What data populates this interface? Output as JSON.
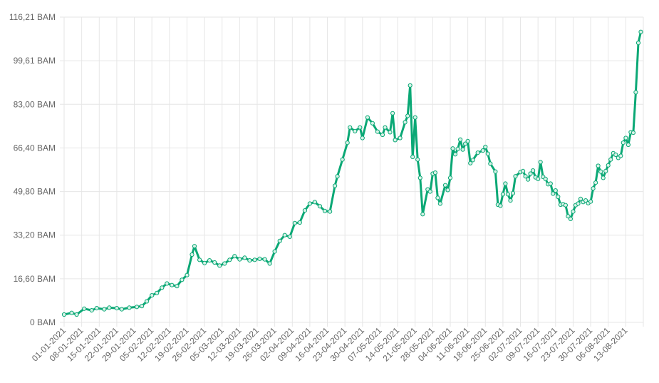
{
  "chart_data": {
    "type": "line",
    "title": "",
    "xlabel": "",
    "ylabel": "",
    "grid": true,
    "legend": "none",
    "ylim": [
      0,
      116.21
    ],
    "y_ticks": [
      "0 BAM",
      "16,60 BAM",
      "33,20 BAM",
      "49,80 BAM",
      "66,40 BAM",
      "83,00 BAM",
      "99,61 BAM",
      "116,21 BAM"
    ],
    "x_tick_labels": [
      "01-01-2021",
      "08-01-2021",
      "15-01-2021",
      "22-01-2021",
      "29-01-2021",
      "05-02-2021",
      "12-02-2021",
      "19-02-2021",
      "26-02-2021",
      "05-03-2021",
      "12-03-2021",
      "19-03-2021",
      "26-03-2021",
      "02-04-2021",
      "09-04-2021",
      "16-04-2021",
      "23-04-2021",
      "30-04-2021",
      "07-05-2021",
      "14-05-2021",
      "21-05-2021",
      "28-05-2021",
      "04-06-2021",
      "11-06-2021",
      "18-06-2021",
      "25-06-2021",
      "02-07-2021",
      "09-07-2021",
      "16-07-2021",
      "23-07-2021",
      "30-07-2021",
      "06-08-2021",
      "13-08-2021"
    ],
    "series": [
      {
        "color": "#0aa875",
        "points": [
          [
            "01-01-2021",
            3.0
          ],
          [
            "04-01-2021",
            3.6
          ],
          [
            "06-01-2021",
            3.0
          ],
          [
            "09-01-2021",
            5.2
          ],
          [
            "12-01-2021",
            4.6
          ],
          [
            "14-01-2021",
            5.4
          ],
          [
            "17-01-2021",
            5.0
          ],
          [
            "19-01-2021",
            5.6
          ],
          [
            "22-01-2021",
            5.4
          ],
          [
            "24-01-2021",
            5.0
          ],
          [
            "27-01-2021",
            5.6
          ],
          [
            "30-01-2021",
            5.9
          ],
          [
            "01-02-2021",
            6.2
          ],
          [
            "03-02-2021",
            8.0
          ],
          [
            "05-02-2021",
            10.3
          ],
          [
            "07-02-2021",
            11.2
          ],
          [
            "09-02-2021",
            13.2
          ],
          [
            "11-02-2021",
            14.8
          ],
          [
            "13-02-2021",
            14.2
          ],
          [
            "15-02-2021",
            13.8
          ],
          [
            "17-02-2021",
            16.2
          ],
          [
            "19-02-2021",
            18.0
          ],
          [
            "21-02-2021",
            25.8
          ],
          [
            "22-02-2021",
            29.0
          ],
          [
            "24-02-2021",
            23.8
          ],
          [
            "26-02-2021",
            22.6
          ],
          [
            "28-02-2021",
            23.6
          ],
          [
            "02-03-2021",
            22.8
          ],
          [
            "04-03-2021",
            21.6
          ],
          [
            "06-03-2021",
            22.4
          ],
          [
            "08-03-2021",
            23.8
          ],
          [
            "10-03-2021",
            25.2
          ],
          [
            "12-03-2021",
            24.0
          ],
          [
            "14-03-2021",
            24.6
          ],
          [
            "16-03-2021",
            23.6
          ],
          [
            "18-03-2021",
            23.8
          ],
          [
            "20-03-2021",
            24.2
          ],
          [
            "22-03-2021",
            24.0
          ],
          [
            "24-03-2021",
            22.4
          ],
          [
            "26-03-2021",
            27.0
          ],
          [
            "28-03-2021",
            31.0
          ],
          [
            "30-03-2021",
            33.2
          ],
          [
            "01-04-2021",
            32.6
          ],
          [
            "03-04-2021",
            37.8
          ],
          [
            "05-04-2021",
            38.0
          ],
          [
            "07-04-2021",
            42.6
          ],
          [
            "09-04-2021",
            45.2
          ],
          [
            "11-04-2021",
            45.8
          ],
          [
            "13-04-2021",
            44.2
          ],
          [
            "15-04-2021",
            42.4
          ],
          [
            "17-04-2021",
            42.2
          ],
          [
            "19-04-2021",
            52.0
          ],
          [
            "20-04-2021",
            55.6
          ],
          [
            "22-04-2021",
            62.0
          ],
          [
            "24-04-2021",
            68.4
          ],
          [
            "25-04-2021",
            74.2
          ],
          [
            "27-04-2021",
            72.8
          ],
          [
            "29-04-2021",
            74.2
          ],
          [
            "30-04-2021",
            70.2
          ],
          [
            "02-05-2021",
            78.0
          ],
          [
            "04-05-2021",
            75.8
          ],
          [
            "06-05-2021",
            72.6
          ],
          [
            "08-05-2021",
            71.4
          ],
          [
            "09-05-2021",
            74.2
          ],
          [
            "11-05-2021",
            72.4
          ],
          [
            "12-05-2021",
            79.6
          ],
          [
            "13-05-2021",
            69.4
          ],
          [
            "15-05-2021",
            70.2
          ],
          [
            "17-05-2021",
            76.2
          ],
          [
            "18-05-2021",
            78.6
          ],
          [
            "19-05-2021",
            90.2
          ],
          [
            "20-05-2021",
            63.0
          ],
          [
            "21-05-2021",
            78.0
          ],
          [
            "22-05-2021",
            62.0
          ],
          [
            "23-05-2021",
            55.0
          ],
          [
            "24-05-2021",
            41.2
          ],
          [
            "26-05-2021",
            50.6
          ],
          [
            "27-05-2021",
            49.8
          ],
          [
            "28-05-2021",
            56.6
          ],
          [
            "29-05-2021",
            57.0
          ],
          [
            "30-05-2021",
            47.4
          ],
          [
            "31-05-2021",
            45.2
          ],
          [
            "02-06-2021",
            52.2
          ],
          [
            "03-06-2021",
            50.4
          ],
          [
            "04-06-2021",
            55.0
          ],
          [
            "05-06-2021",
            66.2
          ],
          [
            "06-06-2021",
            64.0
          ],
          [
            "07-06-2021",
            66.0
          ],
          [
            "08-06-2021",
            69.6
          ],
          [
            "09-06-2021",
            65.8
          ],
          [
            "10-06-2021",
            68.0
          ],
          [
            "11-06-2021",
            69.0
          ],
          [
            "12-06-2021",
            60.6
          ],
          [
            "13-06-2021",
            61.8
          ],
          [
            "15-06-2021",
            64.6
          ],
          [
            "17-06-2021",
            65.4
          ],
          [
            "18-06-2021",
            66.8
          ],
          [
            "19-06-2021",
            64.2
          ],
          [
            "20-06-2021",
            60.4
          ],
          [
            "22-06-2021",
            57.4
          ],
          [
            "23-06-2021",
            44.8
          ],
          [
            "24-06-2021",
            44.4
          ],
          [
            "25-06-2021",
            48.8
          ],
          [
            "26-06-2021",
            52.8
          ],
          [
            "27-06-2021",
            48.8
          ],
          [
            "28-06-2021",
            46.4
          ],
          [
            "29-06-2021",
            49.2
          ],
          [
            "30-06-2021",
            55.6
          ],
          [
            "02-07-2021",
            57.2
          ],
          [
            "03-07-2021",
            57.6
          ],
          [
            "04-07-2021",
            55.6
          ],
          [
            "05-07-2021",
            54.4
          ],
          [
            "06-07-2021",
            56.6
          ],
          [
            "07-07-2021",
            57.8
          ],
          [
            "08-07-2021",
            55.2
          ],
          [
            "09-07-2021",
            54.6
          ],
          [
            "10-07-2021",
            61.0
          ],
          [
            "11-07-2021",
            55.4
          ],
          [
            "12-07-2021",
            54.6
          ],
          [
            "13-07-2021",
            52.6
          ],
          [
            "14-07-2021",
            52.8
          ],
          [
            "15-07-2021",
            49.0
          ],
          [
            "16-07-2021",
            50.2
          ],
          [
            "17-07-2021",
            47.8
          ],
          [
            "18-07-2021",
            44.8
          ],
          [
            "19-07-2021",
            45.0
          ],
          [
            "20-07-2021",
            44.6
          ],
          [
            "21-07-2021",
            40.4
          ],
          [
            "22-07-2021",
            39.4
          ],
          [
            "23-07-2021",
            42.2
          ],
          [
            "24-07-2021",
            44.6
          ],
          [
            "25-07-2021",
            45.2
          ],
          [
            "26-07-2021",
            47.0
          ],
          [
            "27-07-2021",
            45.8
          ],
          [
            "28-07-2021",
            46.4
          ],
          [
            "29-07-2021",
            45.4
          ],
          [
            "30-07-2021",
            46.0
          ],
          [
            "31-07-2021",
            51.0
          ],
          [
            "01-08-2021",
            53.2
          ],
          [
            "02-08-2021",
            59.6
          ],
          [
            "03-08-2021",
            57.4
          ],
          [
            "04-08-2021",
            55.0
          ],
          [
            "05-08-2021",
            57.6
          ],
          [
            "06-08-2021",
            59.8
          ],
          [
            "07-08-2021",
            62.0
          ],
          [
            "08-08-2021",
            64.4
          ],
          [
            "09-08-2021",
            63.8
          ],
          [
            "10-08-2021",
            62.6
          ],
          [
            "11-08-2021",
            63.4
          ],
          [
            "12-08-2021",
            68.4
          ],
          [
            "13-08-2021",
            70.2
          ],
          [
            "14-08-2021",
            67.6
          ],
          [
            "15-08-2021",
            72.4
          ],
          [
            "16-08-2021",
            72.2
          ],
          [
            "17-08-2021",
            87.6
          ],
          [
            "18-08-2021",
            106.4
          ],
          [
            "19-08-2021",
            110.6
          ]
        ]
      }
    ]
  }
}
